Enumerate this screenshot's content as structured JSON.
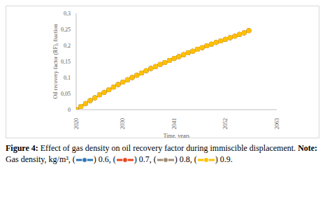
{
  "chart_data": {
    "type": "line",
    "title": "Figure 4: Effect of gas density on oil recovery factor during immiscible displacement.",
    "annotations": [
      "Note: Gas density, kg/m³,"
    ],
    "x_label": "Time, years",
    "y_label": "Oil recovery factor (RF), fraction",
    "x": [
      2020,
      2021,
      2022,
      2023,
      2024,
      2025,
      2026,
      2027,
      2028,
      2029,
      2030,
      2031,
      2032,
      2033,
      2034,
      2035,
      2036,
      2037,
      2038,
      2039,
      2040,
      2041,
      2042,
      2043,
      2044,
      2045,
      2046,
      2047,
      2048,
      2049,
      2050,
      2051,
      2052,
      2053,
      2054,
      2055,
      2056,
      2057
    ],
    "series": [
      {
        "name": "0.6",
        "color": "#2e74b5",
        "values": [
          0,
          0.01,
          0.019,
          0.028,
          0.037,
          0.046,
          0.054,
          0.062,
          0.07,
          0.078,
          0.086,
          0.093,
          0.1,
          0.107,
          0.114,
          0.121,
          0.128,
          0.134,
          0.141,
          0.147,
          0.153,
          0.159,
          0.165,
          0.171,
          0.177,
          0.182,
          0.188,
          0.193,
          0.199,
          0.204,
          0.209,
          0.214,
          0.219,
          0.224,
          0.229,
          0.234,
          0.239,
          0.246
        ]
      },
      {
        "name": "0.7",
        "color": "#e8461e",
        "values": [
          0,
          0.01,
          0.019,
          0.028,
          0.037,
          0.046,
          0.054,
          0.062,
          0.07,
          0.078,
          0.086,
          0.093,
          0.1,
          0.107,
          0.114,
          0.121,
          0.128,
          0.134,
          0.141,
          0.147,
          0.153,
          0.159,
          0.165,
          0.171,
          0.177,
          0.182,
          0.188,
          0.193,
          0.199,
          0.204,
          0.209,
          0.214,
          0.219,
          0.224,
          0.229,
          0.234,
          0.239,
          0.246
        ]
      },
      {
        "name": "0.8",
        "color": "#a08c73",
        "values": [
          0,
          0.01,
          0.019,
          0.028,
          0.037,
          0.046,
          0.054,
          0.062,
          0.07,
          0.078,
          0.086,
          0.093,
          0.1,
          0.107,
          0.114,
          0.121,
          0.128,
          0.134,
          0.141,
          0.147,
          0.153,
          0.159,
          0.165,
          0.171,
          0.177,
          0.182,
          0.188,
          0.193,
          0.199,
          0.204,
          0.209,
          0.214,
          0.219,
          0.224,
          0.229,
          0.234,
          0.239,
          0.246
        ]
      },
      {
        "name": "0.9",
        "color": "#ffc000",
        "values": [
          0,
          0.01,
          0.019,
          0.028,
          0.037,
          0.046,
          0.054,
          0.062,
          0.07,
          0.078,
          0.086,
          0.093,
          0.1,
          0.107,
          0.114,
          0.121,
          0.128,
          0.134,
          0.141,
          0.147,
          0.153,
          0.159,
          0.165,
          0.171,
          0.177,
          0.182,
          0.188,
          0.193,
          0.199,
          0.204,
          0.209,
          0.214,
          0.219,
          0.224,
          0.229,
          0.234,
          0.239,
          0.246
        ]
      }
    ],
    "xlim": [
      2020,
      2063
    ],
    "xticks": [
      2020,
      2030,
      2041,
      2052,
      2063
    ],
    "ylim": [
      0,
      0.3
    ],
    "yticks": [
      0,
      {
        "value": 0.05,
        "label": "0,05"
      },
      {
        "value": 0.1,
        "label": "0,1"
      },
      {
        "value": 0.15,
        "label": "0,15"
      },
      {
        "value": 0.2,
        "label": "0,2"
      },
      {
        "value": 0.25,
        "label": "0,25"
      },
      {
        "value": 0.3,
        "label": "0,3"
      }
    ],
    "marker": "circle",
    "grid": false
  }
}
